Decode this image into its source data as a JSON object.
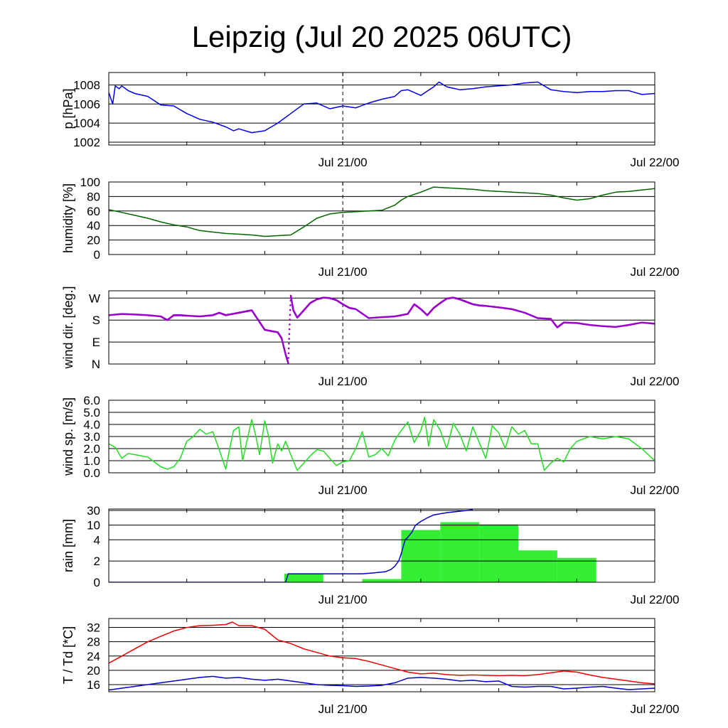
{
  "title": "Leipzig (Jul 20 2025 06UTC)",
  "x_ticks": [
    "Jul 21/00",
    "Jul 22/00"
  ],
  "x_domain_hours": [
    0,
    42
  ],
  "x_midnight_hour": 18,
  "chart_data": [
    {
      "type": "line",
      "id": "pressure",
      "ylabel": "p [hPa]",
      "ylim": [
        1001.7,
        1009.3
      ],
      "yticks": [
        1002,
        1004,
        1006,
        1008
      ],
      "yticklabels": [
        "1002",
        "1004",
        "1006",
        "1008"
      ],
      "grid": true,
      "series": [
        {
          "color": "#0000ee",
          "x": [
            0,
            0.3,
            0.5,
            0.8,
            1.0,
            1.5,
            2.0,
            3.0,
            4.0,
            5.0,
            6.0,
            7.0,
            8.0,
            9.0,
            9.6,
            10.0,
            11.0,
            12.0,
            13.0,
            14.0,
            15.0,
            16.0,
            17.0,
            18.0,
            19.0,
            20.0,
            21.0,
            22.0,
            22.5,
            23.0,
            24.0,
            25.0,
            25.4,
            26.0,
            27.0,
            28.0,
            29.0,
            30.0,
            31.0,
            32.0,
            33.0,
            34.0,
            35.0,
            36.0,
            37.0,
            38.0,
            39.0,
            40.0,
            41.0,
            42.0
          ],
          "y": [
            1007.2,
            1006.0,
            1007.9,
            1007.6,
            1007.9,
            1007.4,
            1007.1,
            1006.8,
            1005.9,
            1005.8,
            1005.0,
            1004.4,
            1004.1,
            1003.6,
            1003.2,
            1003.4,
            1003.0,
            1003.2,
            1004.0,
            1005.0,
            1006.0,
            1006.1,
            1005.5,
            1005.8,
            1005.6,
            1006.1,
            1006.5,
            1006.8,
            1007.4,
            1007.5,
            1006.9,
            1007.8,
            1008.3,
            1007.8,
            1007.5,
            1007.6,
            1007.8,
            1007.9,
            1008.0,
            1008.2,
            1008.3,
            1007.5,
            1007.3,
            1007.2,
            1007.3,
            1007.3,
            1007.4,
            1007.4,
            1007.0,
            1007.1
          ]
        }
      ]
    },
    {
      "type": "line",
      "id": "humidity",
      "ylabel": "humidity [%]",
      "ylim": [
        0,
        100
      ],
      "yticks": [
        0,
        20,
        40,
        60,
        80,
        100
      ],
      "yticklabels": [
        "0",
        "20",
        "40",
        "60",
        "80",
        "100"
      ],
      "grid": true,
      "series": [
        {
          "color": "#006600",
          "x": [
            0,
            1,
            2,
            3,
            4,
            5,
            6,
            7,
            8,
            9,
            10,
            11,
            12,
            13,
            14,
            15,
            16,
            17,
            18,
            19,
            20,
            21,
            22,
            22.5,
            23,
            24,
            25,
            26,
            27,
            28,
            29,
            30,
            31,
            32,
            33,
            34,
            35,
            36,
            37,
            38,
            39,
            40,
            41,
            42
          ],
          "y": [
            62,
            58,
            54,
            50,
            45,
            41,
            38,
            33,
            31,
            29,
            28,
            27,
            25,
            26,
            27,
            38,
            50,
            56,
            58,
            59,
            60,
            61,
            68,
            75,
            80,
            86,
            93,
            92,
            91,
            90,
            88,
            87,
            86,
            85,
            84,
            82,
            78,
            75,
            77,
            82,
            86,
            87,
            89,
            91
          ]
        }
      ]
    },
    {
      "type": "scatter",
      "id": "wind_direction",
      "ylabel": "wind dir. [deg.]",
      "ylim": [
        0,
        300
      ],
      "yticks": [
        0,
        90,
        180,
        270
      ],
      "yticklabels": [
        "N",
        "E",
        "S",
        "W"
      ],
      "grid": true,
      "series": [
        {
          "color": "#9900cc",
          "x": [
            0,
            1,
            2,
            3,
            4,
            4.5,
            5,
            5.5,
            6,
            7,
            8,
            8.5,
            9,
            9.5,
            10,
            10.5,
            11,
            11.5,
            12,
            12.5,
            13,
            13.3,
            13.6,
            13.8,
            14,
            14.2,
            14.5,
            15,
            15.5,
            16,
            16.5,
            17,
            17.5,
            18,
            18.5,
            19,
            20,
            21,
            22,
            23,
            23.5,
            24,
            24.5,
            25,
            25.5,
            26,
            26.5,
            27,
            27.5,
            28,
            28.5,
            29,
            30,
            31,
            32,
            33,
            34,
            34.5,
            35,
            36,
            37,
            38,
            39,
            40,
            41,
            42
          ],
          "y": [
            200,
            205,
            203,
            200,
            195,
            180,
            200,
            200,
            198,
            195,
            200,
            210,
            200,
            205,
            210,
            215,
            220,
            180,
            140,
            135,
            130,
            105,
            40,
            5,
            280,
            220,
            190,
            220,
            250,
            265,
            272,
            270,
            262,
            245,
            230,
            225,
            188,
            192,
            195,
            205,
            245,
            225,
            200,
            230,
            250,
            268,
            272,
            265,
            255,
            245,
            240,
            238,
            232,
            225,
            210,
            188,
            185,
            150,
            170,
            168,
            160,
            155,
            152,
            160,
            170,
            165
          ]
        }
      ]
    },
    {
      "type": "line",
      "id": "wind_speed",
      "ylabel": "wind sp. [m/s]",
      "ylim": [
        0,
        6.0
      ],
      "yticks": [
        0,
        1,
        2,
        3,
        4,
        5,
        6
      ],
      "yticklabels": [
        "0.0",
        "1.0",
        "2.0",
        "3.0",
        "4.0",
        "5.0",
        "6.0"
      ],
      "grid": true,
      "series": [
        {
          "color": "#22dd22",
          "x": [
            0,
            0.5,
            1,
            1.5,
            2,
            3,
            4,
            4.5,
            5,
            5.5,
            6,
            6.5,
            7,
            7.5,
            8,
            8.5,
            9,
            9.3,
            9.6,
            10,
            10.3,
            10.6,
            11,
            11.3,
            11.6,
            12,
            12.3,
            12.6,
            13,
            13.3,
            13.6,
            14,
            14.5,
            15,
            15.5,
            16,
            16.5,
            17,
            17.5,
            18,
            18.5,
            19,
            19.5,
            20,
            20.5,
            21,
            21.5,
            22,
            22.5,
            23,
            23.5,
            24,
            24.3,
            24.6,
            25,
            25.5,
            26,
            26.5,
            27,
            27.5,
            28,
            28.5,
            29,
            29.5,
            30,
            30.5,
            31,
            31.5,
            32,
            32.5,
            33,
            33.5,
            34,
            34.5,
            35,
            35.5,
            36,
            37,
            38,
            39,
            40,
            41,
            42
          ],
          "y": [
            2.4,
            2.1,
            1.2,
            1.6,
            1.5,
            1.3,
            0.5,
            0.3,
            0.5,
            1.2,
            2.6,
            3.0,
            3.6,
            3.2,
            3.4,
            1.9,
            0.3,
            2.0,
            3.5,
            3.8,
            1.0,
            2.5,
            4.4,
            3.1,
            1.5,
            4.3,
            3.0,
            0.8,
            2.4,
            1.8,
            2.6,
            1.5,
            0.2,
            0.8,
            1.4,
            1.9,
            1.8,
            1.2,
            0.6,
            0.9,
            1.0,
            2.0,
            3.4,
            1.3,
            1.5,
            2.0,
            1.4,
            2.7,
            3.5,
            4.2,
            2.5,
            3.5,
            4.6,
            2.2,
            4.4,
            3.5,
            2.0,
            4.1,
            3.2,
            1.8,
            3.8,
            2.5,
            1.2,
            3.9,
            3.3,
            2.0,
            3.8,
            3.2,
            3.5,
            2.4,
            2.4,
            0.2,
            0.8,
            1.2,
            0.9,
            2.0,
            2.6,
            3.0,
            2.8,
            3.0,
            2.8,
            2.0,
            1.0
          ]
        }
      ]
    },
    {
      "type": "bar",
      "id": "rain",
      "ylabel": "rain [mm]",
      "ylim_display": [
        0,
        30
      ],
      "yticks": [
        0,
        2,
        4,
        10,
        30
      ],
      "yticklabels": [
        "0",
        "2",
        "4",
        "10",
        "30"
      ],
      "grid": true,
      "bars": [
        {
          "x0": 13.5,
          "x1": 16.5,
          "value": 0.8
        },
        {
          "x0": 19.5,
          "x1": 22.5,
          "value": 0.3
        },
        {
          "x0": 22.5,
          "x1": 25.5,
          "value": 8
        },
        {
          "x0": 25.5,
          "x1": 28.5,
          "value": 14
        },
        {
          "x0": 28.5,
          "x1": 31.5,
          "value": 11
        },
        {
          "x0": 31.5,
          "x1": 34.5,
          "value": 3.0
        },
        {
          "x0": 34.5,
          "x1": 37.5,
          "value": 2.3
        }
      ],
      "bar_color": "#33ee33",
      "series": [
        {
          "name": "",
          "color": "#0000cc",
          "x": [
            0,
            13.6,
            13.8,
            16.5,
            19.5,
            20.5,
            21.3,
            21.7,
            22.0,
            22.3,
            22.5,
            22.8,
            23.0,
            23.3,
            23.6,
            24.0,
            24.5,
            25.0,
            26.0,
            27.0,
            28.0
          ],
          "y": [
            0,
            0,
            0.8,
            0.8,
            0.8,
            0.9,
            1.0,
            1.2,
            1.5,
            2.0,
            2.7,
            4,
            5,
            7,
            10,
            15,
            20,
            24,
            27,
            29,
            31
          ]
        }
      ]
    },
    {
      "type": "line",
      "id": "temperature",
      "ylabel": "T / Td [*C]",
      "ylim": [
        14,
        34.5
      ],
      "yticks": [
        16,
        20,
        24,
        28,
        32
      ],
      "yticklabels": [
        "16",
        "20",
        "24",
        "28",
        "32"
      ],
      "grid": true,
      "series": [
        {
          "color": "#ee0000",
          "x": [
            0,
            1,
            2,
            3,
            4,
            5,
            6,
            7,
            8,
            9,
            9.5,
            10,
            11,
            12,
            13,
            14,
            15,
            16,
            17,
            18,
            19,
            20,
            21,
            22,
            23,
            24,
            25,
            26,
            27,
            28,
            29,
            30,
            31,
            32,
            33,
            34,
            35,
            36,
            37,
            38,
            39,
            40,
            41,
            42
          ],
          "y": [
            22.0,
            24.0,
            26.0,
            28.0,
            29.5,
            31.0,
            32.0,
            32.5,
            32.6,
            32.8,
            33.5,
            32.5,
            32.5,
            31.5,
            28.5,
            27.5,
            26.0,
            25.0,
            24.0,
            23.5,
            23.3,
            22.5,
            21.5,
            20.5,
            19.5,
            19.0,
            19.2,
            18.8,
            18.6,
            18.7,
            18.6,
            18.5,
            18.6,
            18.5,
            18.8,
            19.3,
            19.8,
            19.5,
            18.7,
            18.0,
            17.5,
            17.0,
            16.5,
            16.2
          ]
        },
        {
          "color": "#0000cc",
          "x": [
            0,
            2,
            4,
            6,
            7,
            8,
            9,
            10,
            11,
            12,
            13,
            14,
            15,
            16,
            17,
            18,
            19,
            20,
            21,
            22,
            23,
            24,
            25,
            26,
            27,
            28,
            29,
            30,
            31,
            32,
            33,
            34,
            35,
            36,
            37,
            38,
            39,
            40,
            41,
            42
          ],
          "y": [
            14.5,
            15.5,
            16.5,
            17.5,
            18.0,
            18.3,
            17.8,
            18.0,
            17.5,
            17.2,
            17.5,
            17.0,
            16.5,
            16.0,
            15.8,
            15.7,
            15.5,
            15.6,
            15.8,
            16.5,
            17.8,
            18.0,
            17.8,
            17.5,
            17.0,
            17.2,
            16.8,
            17.0,
            15.5,
            15.3,
            15.5,
            15.5,
            14.8,
            15.0,
            15.3,
            15.5,
            15.0,
            14.6,
            14.8,
            15.0
          ]
        }
      ]
    }
  ]
}
